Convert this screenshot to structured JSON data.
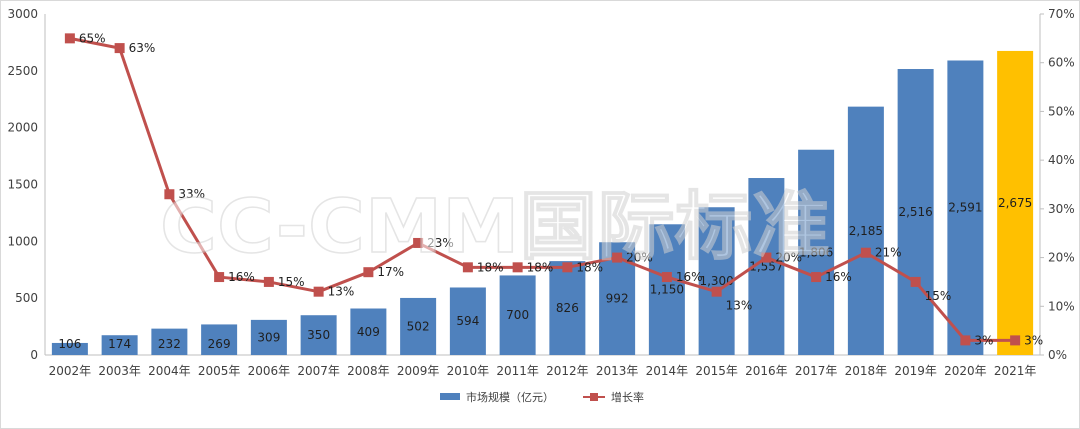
{
  "chart_data": {
    "type": "bar",
    "categories": [
      "2002年",
      "2003年",
      "2004年",
      "2005年",
      "2006年",
      "2007年",
      "2008年",
      "2009年",
      "2010年",
      "2011年",
      "2012年",
      "2013年",
      "2014年",
      "2015年",
      "2016年",
      "2017年",
      "2018年",
      "2019年",
      "2020年",
      "2021年"
    ],
    "series": [
      {
        "name": "市场规模（亿元）",
        "type": "bar",
        "axis": "left",
        "values": [
          106,
          174,
          232,
          269,
          309,
          350,
          409,
          502,
          594,
          700,
          826,
          992,
          1150,
          1300,
          1557,
          1806,
          2185,
          2516,
          2591,
          2675
        ],
        "value_labels": [
          "106",
          "174",
          "232",
          "269",
          "309",
          "350",
          "409",
          "502",
          "594",
          "700",
          "826",
          "992",
          "1,150",
          "1,300",
          "1,557",
          "1,806",
          "2,185",
          "2,516",
          "2,591",
          "2,675"
        ],
        "color": "#4f81bd",
        "highlight": {
          "category": "2021年",
          "color": "#ffc000"
        }
      },
      {
        "name": "增长率",
        "type": "line",
        "axis": "right",
        "values": [
          65,
          63,
          33,
          16,
          15,
          13,
          17,
          23,
          18,
          18,
          18,
          20,
          16,
          13,
          20,
          16,
          21,
          15,
          3,
          3
        ],
        "value_labels": [
          "65%",
          "63%",
          "33%",
          "16%",
          "15%",
          "13%",
          "17%",
          "23%",
          "18%",
          "18%",
          "18%",
          "20%",
          "16%",
          "13%",
          "20%",
          "16%",
          "21%",
          "15%",
          "3%",
          "3%"
        ],
        "color": "#c0504d"
      }
    ],
    "y_left": {
      "min": 0,
      "max": 3000,
      "ticks": [
        0,
        500,
        1000,
        1500,
        2000,
        2500,
        3000
      ]
    },
    "y_right": {
      "min": 0,
      "max": 70,
      "ticks": [
        "0%",
        "10%",
        "20%",
        "30%",
        "40%",
        "50%",
        "60%",
        "70%"
      ]
    },
    "legend_position": "bottom",
    "grid": false
  },
  "watermark": "CC-CMM国际标准"
}
